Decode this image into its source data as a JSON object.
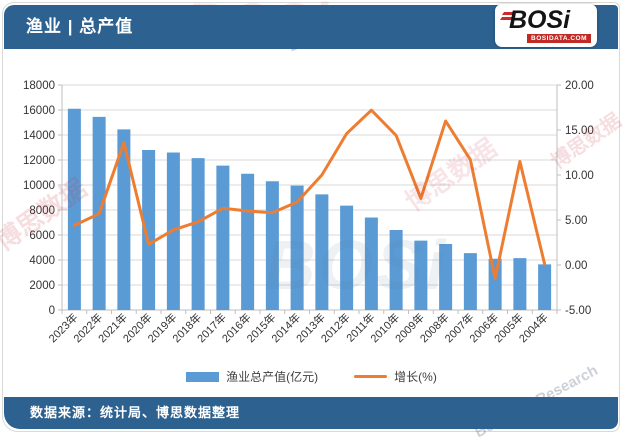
{
  "header": {
    "title": "渔业 | 总产值"
  },
  "logo": {
    "text": "BOSi",
    "domain": "BOSIDATA.COM"
  },
  "footer": {
    "source_text": "数据来源：统计局、博思数据整理"
  },
  "watermarks": [
    "BOSi",
    "博思数据",
    "BosiData Research",
    "BosiData.com"
  ],
  "colors": {
    "header_bg": "#2D618F",
    "footer_bg": "#2D618F",
    "bar": "#5B9BD5",
    "line": "#ED7D31",
    "grid": "#D9D9D9",
    "axis_line": "#BFBFBF",
    "axis_text": "#333333",
    "logo_red": "#C22A26"
  },
  "chart_data": {
    "type": "bar",
    "combo": "bar+line",
    "title": "渔业 | 总产值",
    "categories": [
      "2023年",
      "2022年",
      "2021年",
      "2020年",
      "2019年",
      "2018年",
      "2017年",
      "2016年",
      "2015年",
      "2014年",
      "2013年",
      "2012年",
      "2011年",
      "2010年",
      "2009年",
      "2008年",
      "2007年",
      "2006年",
      "2005年",
      "2004年"
    ],
    "series": [
      {
        "name": "渔业总产值(亿元)",
        "type": "bar",
        "yaxis": "left",
        "color": "#5B9BD5",
        "values": [
          16100,
          15450,
          14450,
          12800,
          12600,
          12150,
          11550,
          10900,
          10300,
          9950,
          9250,
          8350,
          7400,
          6400,
          5550,
          5280,
          4550,
          4100,
          4150,
          3650
        ]
      },
      {
        "name": "增长(%)",
        "type": "line",
        "yaxis": "right",
        "color": "#ED7D31",
        "values": [
          4.4,
          5.7,
          13.6,
          2.3,
          3.9,
          4.8,
          6.3,
          6.0,
          5.8,
          7.0,
          10.0,
          14.6,
          17.2,
          14.4,
          7.4,
          16.0,
          11.7,
          -1.5,
          11.5,
          0.1
        ]
      }
    ],
    "left_axis": {
      "min": 0,
      "max": 18000,
      "step": 2000,
      "tick_labels": [
        "0",
        "2000",
        "4000",
        "6000",
        "8000",
        "10000",
        "12000",
        "14000",
        "16000",
        "18000"
      ]
    },
    "right_axis": {
      "min": -5,
      "max": 20,
      "step": 5,
      "tick_labels": [
        "-5.00",
        "0.00",
        "5.00",
        "10.00",
        "15.00",
        "20.00"
      ]
    },
    "grid": true,
    "legend_position": "bottom",
    "xlabel": "",
    "ylabel_left": "",
    "ylabel_right": ""
  }
}
